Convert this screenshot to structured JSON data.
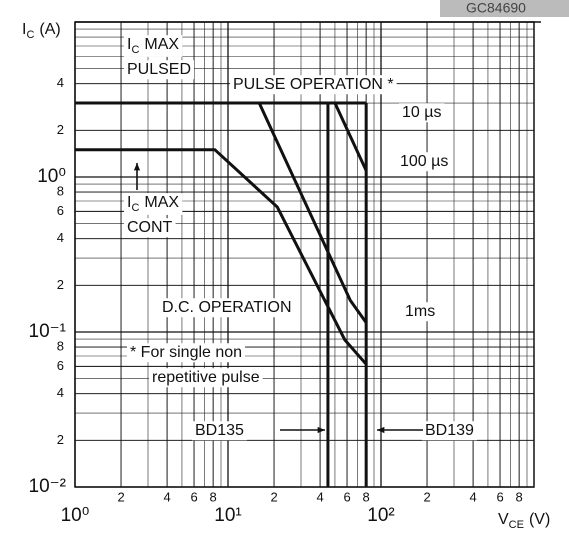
{
  "chart_data": {
    "type": "line",
    "log_x": true,
    "log_y": true,
    "grid": true,
    "minor_grid": true,
    "code": "GC84690",
    "y_label": {
      "symbol": "I",
      "sub": "C",
      "unit": "(A)"
    },
    "x_label": {
      "symbol": "V",
      "sub": "CE",
      "unit": "(V)"
    },
    "xlim": [
      1,
      1000
    ],
    "ylim": [
      0.01,
      10
    ],
    "xticks": [
      {
        "value": 1,
        "label": "10⁰"
      },
      2,
      4,
      6,
      8,
      {
        "value": 10,
        "label": "10¹"
      },
      20,
      40,
      60,
      80,
      {
        "value": 100,
        "label": "10²"
      },
      200,
      400,
      600,
      800
    ],
    "xtick_labels": [
      "10⁰",
      "2",
      "4",
      "6",
      "8",
      "10¹",
      "2",
      "4",
      "6",
      "8",
      "10²",
      "2",
      "4",
      "6",
      "8"
    ],
    "yticks": [
      {
        "value": 0.01,
        "label": "10⁻²"
      },
      0.02,
      0.04,
      0.06,
      0.08,
      {
        "value": 0.1,
        "label": "10⁻¹"
      },
      0.2,
      0.4,
      0.6,
      0.8,
      {
        "value": 1,
        "label": "10⁰"
      },
      2,
      4
    ],
    "ytick_labels": [
      "10⁻²",
      "2",
      "4",
      "6",
      "8",
      "10⁻¹",
      "2",
      "4",
      "6",
      "8",
      "10⁰",
      "2",
      "4"
    ],
    "series": [
      {
        "color": "#111111",
        "x": [
          1,
          80
        ],
        "values": [
          3,
          3
        ]
      },
      {
        "color": "#111111",
        "x": [
          1,
          8.2,
          21,
          58,
          80
        ],
        "values": [
          1.5,
          1.5,
          0.64,
          0.089,
          0.062
        ]
      },
      {
        "color": "#111111",
        "x": [
          16,
          63,
          80
        ],
        "values": [
          3,
          0.16,
          0.115
        ]
      },
      {
        "color": "#111111",
        "x": [
          50,
          80
        ],
        "values": [
          3,
          1.1
        ]
      },
      {
        "color": "#111111",
        "x": [
          45,
          45
        ],
        "values": [
          3,
          0.01
        ]
      },
      {
        "color": "#111111",
        "x": [
          80,
          80
        ],
        "values": [
          3,
          0.01
        ]
      }
    ],
    "annotations": {
      "ic_max_pulsed": {
        "symbol": "I",
        "sub": "C",
        "text": "MAX",
        "line2": "PULSED"
      },
      "pulse_operation": "PULSE OPERATION *",
      "t10us": "10 µs",
      "t100us": "100 µs",
      "ic_max_cont": {
        "symbol": "I",
        "sub": "C",
        "text": "MAX",
        "line2": "CONT"
      },
      "dc_operation": "D.C. OPERATION",
      "t1ms": "1ms",
      "note1": "* For single non",
      "note2": "repetitive pulse",
      "bd135": "BD135",
      "bd139": "BD139"
    }
  }
}
